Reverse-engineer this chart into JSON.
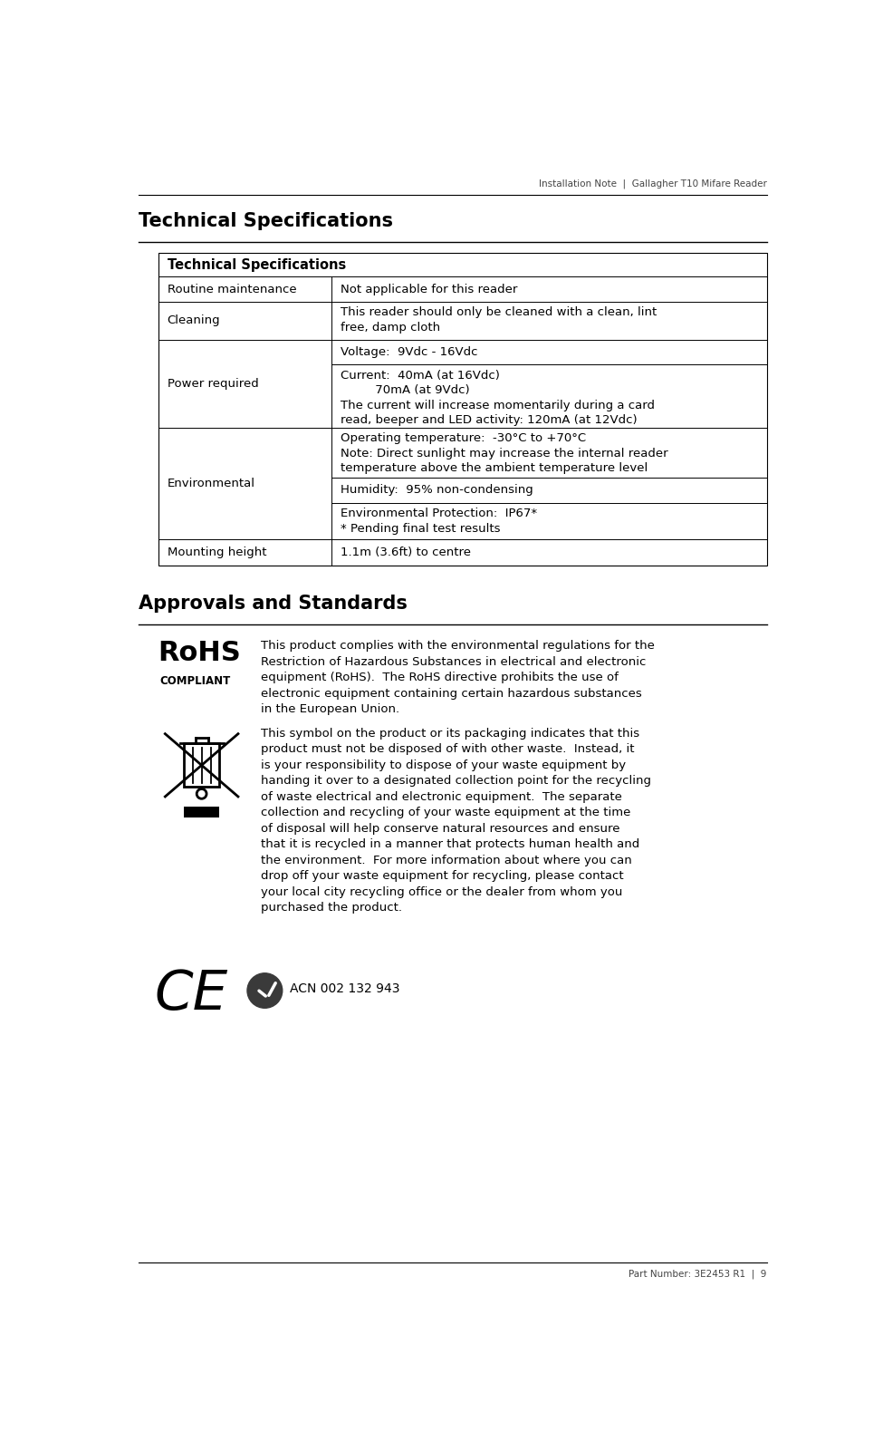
{
  "page_width": 9.75,
  "page_height": 16.01,
  "bg_color": "#ffffff",
  "header_text": "Installation Note  |  Gallagher T10 Mifare Reader",
  "footer_text": "Part Number: 3E2453 R1  |  9",
  "section1_title": "Technical Specifications",
  "section2_title": "Approvals and Standards",
  "table_header": "Technical Specifications",
  "rohs_text": "This product complies with the environmental regulations for the\nRestriction of Hazardous Substances in electrical and electronic\nequipment (RoHS).  The RoHS directive prohibits the use of\nelectronic equipment containing certain hazardous substances\nin the European Union.",
  "waste_text": "This symbol on the product or its packaging indicates that this\nproduct must not be disposed of with other waste.  Instead, it\nis your responsibility to dispose of your waste equipment by\nhanding it over to a designated collection point for the recycling\nof waste electrical and electronic equipment.  The separate\ncollection and recycling of your waste equipment at the time\nof disposal will help conserve natural resources and ensure\nthat it is recycled in a manner that protects human health and\nthe environment.  For more information about where you can\ndrop off your waste equipment for recycling, please contact\nyour local city recycling office or the dealer from whom you\npurchased the product.",
  "acn_text": "ACN 002 132 943",
  "line_color": "#000000",
  "table_border_color": "#000000",
  "text_color": "#000000"
}
